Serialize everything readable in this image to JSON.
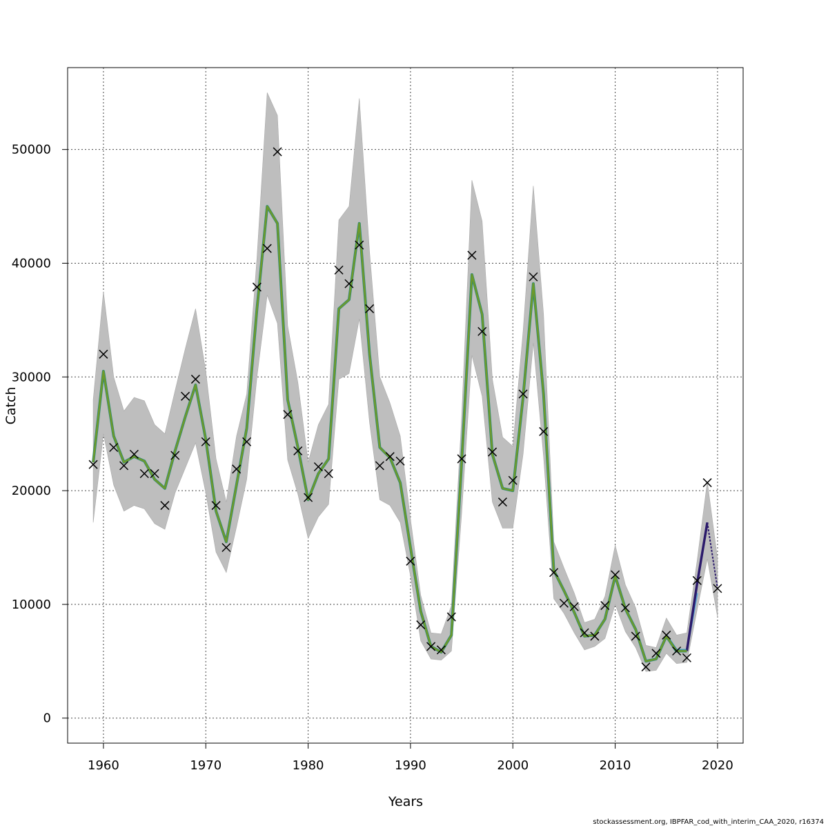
{
  "chart_data": {
    "type": "line",
    "title": "",
    "xlabel": "Years",
    "ylabel": "Catch",
    "xlim": [
      1956.5,
      2022.5
    ],
    "ylim": [
      -2200,
      57200
    ],
    "xticks": [
      1960,
      1970,
      1980,
      1990,
      2000,
      2010,
      2020
    ],
    "yticks": [
      0,
      10000,
      20000,
      30000,
      40000,
      50000
    ],
    "grid": true,
    "legend": "none",
    "colors": {
      "band": "#bebebe",
      "fit": "#6e9a2a",
      "retro_1": "#2b1a6b",
      "retro_2": "#5fa8d8",
      "retro_3": "#2a8a78",
      "marker": "#000000",
      "grid": "#444444"
    },
    "years": [
      1959,
      1960,
      1961,
      1962,
      1963,
      1964,
      1965,
      1966,
      1967,
      1968,
      1969,
      1970,
      1971,
      1972,
      1973,
      1974,
      1975,
      1976,
      1977,
      1978,
      1979,
      1980,
      1981,
      1982,
      1983,
      1984,
      1985,
      1986,
      1987,
      1988,
      1989,
      1990,
      1991,
      1992,
      1993,
      1994,
      1995,
      1996,
      1997,
      1998,
      1999,
      2000,
      2001,
      2002,
      2003,
      2004,
      2005,
      2006,
      2007,
      2008,
      2009,
      2010,
      2011,
      2012,
      2013,
      2014,
      2015,
      2016,
      2017,
      2018,
      2019,
      2020
    ],
    "observed_catch": [
      22300,
      32000,
      23800,
      22200,
      23200,
      21500,
      21500,
      18700,
      23100,
      28300,
      29800,
      24300,
      18700,
      15000,
      21900,
      24300,
      37900,
      41300,
      49800,
      26700,
      23500,
      19400,
      22100,
      21500,
      39400,
      38200,
      41600,
      36000,
      22200,
      23000,
      22600,
      13800,
      8200,
      6300,
      6000,
      8900,
      22800,
      40700,
      34000,
      23400,
      19000,
      20900,
      28500,
      38800,
      25200,
      12800,
      10100,
      9800,
      7500,
      7200,
      9900,
      12600,
      9700,
      7200,
      4500,
      5700,
      7300,
      5900,
      5300,
      12100,
      20700,
      11400
    ],
    "fitted_catch": [
      22500,
      30500,
      24800,
      22500,
      23000,
      22600,
      21000,
      20200,
      23500,
      26500,
      29300,
      24500,
      18200,
      15500,
      20500,
      25500,
      36000,
      45000,
      43500,
      28000,
      23800,
      19200,
      21500,
      22800,
      36000,
      36800,
      43500,
      32000,
      23800,
      22900,
      20700,
      15000,
      9400,
      6300,
      5800,
      7300,
      22500,
      39000,
      35500,
      23200,
      20200,
      20000,
      28200,
      38200,
      28500,
      13000,
      11200,
      9300,
      7200,
      7300,
      8700,
      12500,
      9600,
      7800,
      5000,
      5200,
      7200,
      5900,
      5900,
      11800,
      17200,
      11400
    ],
    "band_upper": [
      28000,
      37500,
      30000,
      27000,
      28200,
      27900,
      25800,
      25000,
      28800,
      32500,
      36000,
      30500,
      22800,
      19000,
      24800,
      28500,
      40500,
      55000,
      53000,
      34500,
      29500,
      22500,
      25800,
      27600,
      43800,
      45000,
      54500,
      41000,
      30000,
      27700,
      24800,
      17500,
      10800,
      7500,
      7400,
      9900,
      26500,
      47300,
      43700,
      29800,
      24700,
      23900,
      34000,
      46800,
      35500,
      15500,
      13200,
      11000,
      8400,
      8700,
      10700,
      15200,
      11700,
      9700,
      6400,
      6200,
      8800,
      7300,
      7500,
      13800,
      20800,
      14000
    ],
    "band_lower": [
      17200,
      25000,
      20500,
      18200,
      18700,
      18400,
      17100,
      16600,
      19800,
      22000,
      24200,
      19800,
      14600,
      12800,
      16800,
      21000,
      30000,
      37200,
      34700,
      22700,
      19700,
      15800,
      17700,
      18800,
      29800,
      30300,
      35100,
      26000,
      19200,
      18700,
      17200,
      12500,
      6800,
      5200,
      5100,
      5900,
      18000,
      31900,
      28300,
      19000,
      16700,
      16700,
      23200,
      33000,
      23000,
      10500,
      9200,
      7500,
      6000,
      6300,
      7000,
      10000,
      7600,
      6200,
      4100,
      4200,
      5700,
      4800,
      4900,
      9500,
      14000,
      8900
    ],
    "retro_1": {
      "years": [
        2017,
        2018,
        2019,
        2020
      ],
      "values": [
        5900,
        11800,
        17200,
        11400
      ],
      "dashed_from": 2019
    },
    "retro_2": {
      "years": [
        2015,
        2016,
        2017,
        2018
      ],
      "values": [
        7300,
        6000,
        6000,
        11000
      ]
    },
    "retro_3": {
      "years": [
        2013,
        2014,
        2015,
        2016
      ],
      "values": [
        5000,
        5200,
        7200,
        5800
      ]
    }
  },
  "footer": {
    "credit": "stockassessment.org, IBPFAR_cod_with_interim_CAA_2020, r16374"
  }
}
